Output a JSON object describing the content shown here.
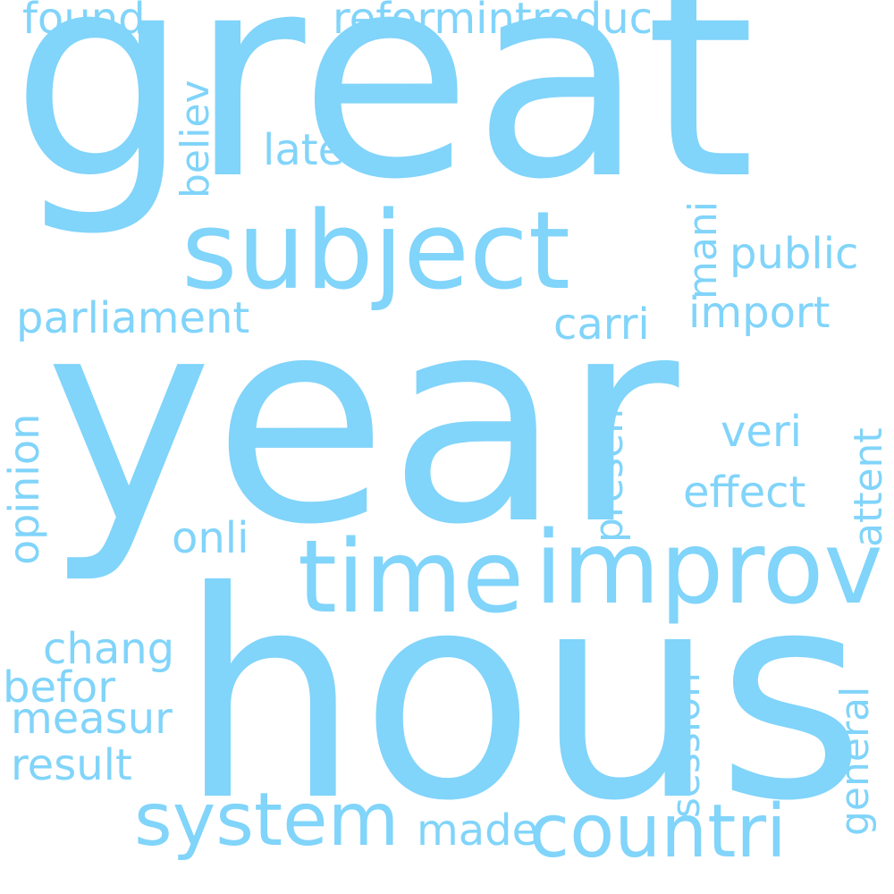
{
  "word_color": "#81d4fa",
  "background": "#ffffff",
  "words": {
    "great": "great",
    "year": "year",
    "hous": "hous",
    "subject": "subject",
    "improv": "improv",
    "time": "time",
    "system": "system",
    "countri": "countri",
    "parliament": "parliament",
    "found": "found",
    "reformintroduc": "reformintroduc",
    "believ": "believ",
    "late": "late",
    "mani": "mani",
    "public": "public",
    "import": "import",
    "carri": "carri",
    "present": "present",
    "opinion": "opinion",
    "attent": "attent",
    "veri": "veri",
    "effect": "effect",
    "onli": "onli",
    "chang": "chang",
    "befor": "befor",
    "measur": "measur",
    "result": "result",
    "session": "session",
    "general": "general",
    "made": "made"
  }
}
